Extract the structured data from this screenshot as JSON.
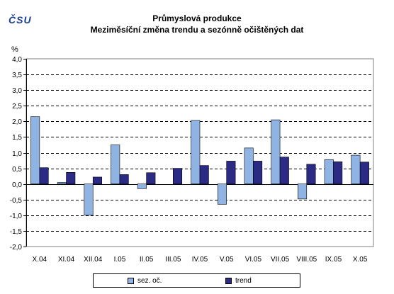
{
  "logo": {
    "text": "ČSU"
  },
  "chart_data": {
    "type": "bar",
    "title": "Průmyslová produkce",
    "subtitle": "Meziměsíční změna trendu a sezónně očištěných dat",
    "ylabel": "%",
    "xlabel": "",
    "ylim": [
      -2.0,
      4.0
    ],
    "yticks": [
      "4,0",
      "3,5",
      "3,0",
      "2,5",
      "2,0",
      "1,5",
      "1,0",
      "0,5",
      "0,0",
      "-0,5",
      "-1,0",
      "-1,5",
      "-2,0"
    ],
    "ytick_values": [
      4.0,
      3.5,
      3.0,
      2.5,
      2.0,
      1.5,
      1.0,
      0.5,
      0.0,
      -0.5,
      -1.0,
      -1.5,
      -2.0
    ],
    "grid": "horizontal dashed",
    "legend_position": "bottom",
    "categories": [
      "X.04",
      "XI.04",
      "XII.04",
      "I.05",
      "II.05",
      "III.05",
      "IV.05",
      "V.05",
      "VI.05",
      "VII.05",
      "VIII.05",
      "IX.05",
      "X.05"
    ],
    "series": [
      {
        "name": "sez. oč.",
        "color": "#8fb3e3",
        "values": [
          2.15,
          0.05,
          -1.0,
          1.25,
          -0.15,
          0.0,
          2.03,
          -0.65,
          1.15,
          2.05,
          -0.48,
          0.78,
          0.92
        ]
      },
      {
        "name": "trend",
        "color": "#2b2b85",
        "values": [
          0.52,
          0.37,
          0.22,
          0.3,
          0.36,
          0.5,
          0.59,
          0.73,
          0.73,
          0.86,
          0.63,
          0.71,
          0.7
        ]
      }
    ]
  }
}
